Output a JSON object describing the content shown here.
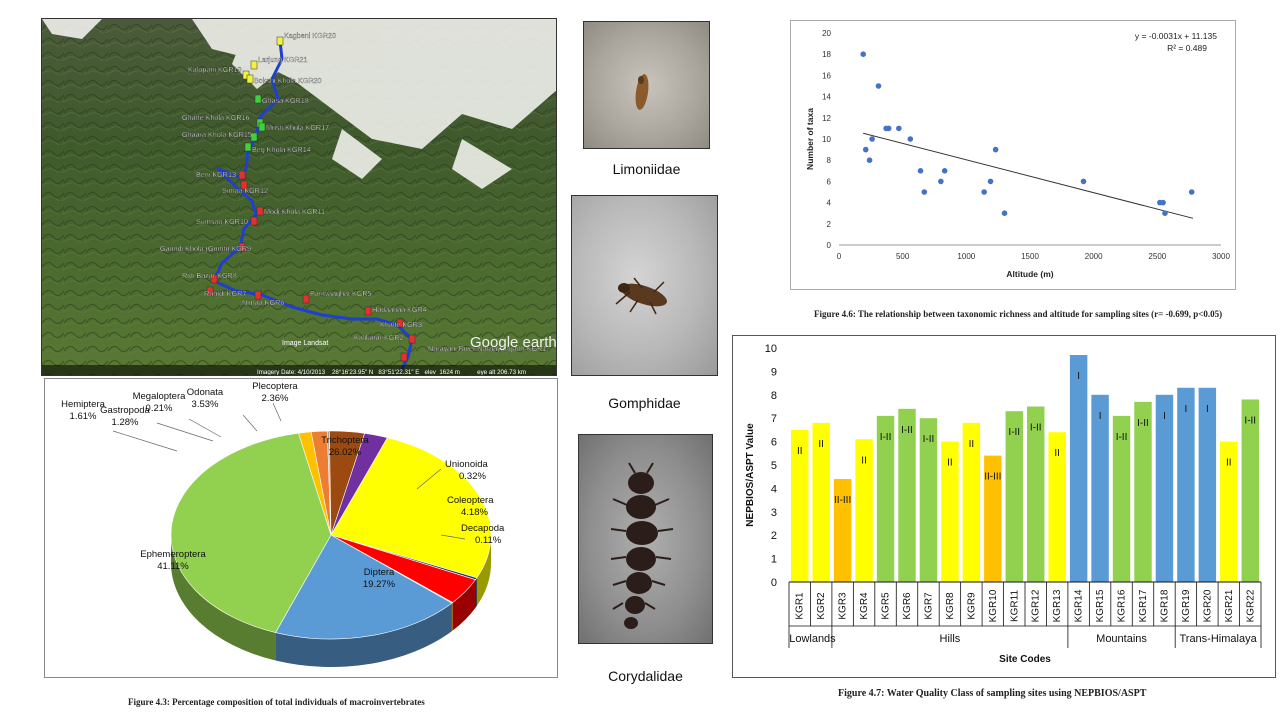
{
  "map": {
    "sites": [
      {
        "code": "KGR20",
        "name": "Kagbeni",
        "color": "yellow"
      },
      {
        "code": "KGR21",
        "name": "Larjung",
        "color": "yellow"
      },
      {
        "code": "KGR19",
        "name": "Kalopani",
        "color": "yellow"
      },
      {
        "code": "KGR20",
        "name": "Bokshi Khola",
        "color": "yellow"
      },
      {
        "code": "KGR18",
        "name": "Ghasa",
        "color": "green"
      },
      {
        "code": "KGR16",
        "name": "Ghatte Khola",
        "color": "green"
      },
      {
        "code": "KGR17",
        "name": "Mristi Khola",
        "color": "green"
      },
      {
        "code": "KGR15",
        "name": "Ghaara Khola",
        "color": "green"
      },
      {
        "code": "KGR14",
        "name": "Beg Khola",
        "color": "green"
      },
      {
        "code": "KGR13",
        "name": "Beni",
        "color": "red"
      },
      {
        "code": "KGR12",
        "name": "Simaa",
        "color": "red"
      },
      {
        "code": "KGR11",
        "name": "Modi Khola",
        "color": "red"
      },
      {
        "code": "KGR10",
        "name": "Sumsaa",
        "color": "red"
      },
      {
        "code": "KGR9",
        "name": "Gaundi Khola (Gumti)",
        "color": "red"
      },
      {
        "code": "KGR8",
        "name": "Ridi Bazar",
        "color": "red"
      },
      {
        "code": "KGR7",
        "name": "Ramdi",
        "color": "red"
      },
      {
        "code": "KGR6",
        "name": "Nimaa",
        "color": "red"
      },
      {
        "code": "KGR5",
        "name": "Pariwaaghat",
        "color": "red"
      },
      {
        "code": "KGR4",
        "name": "Hadaahaa",
        "color": "red"
      },
      {
        "code": "KGR3",
        "name": "Khalte",
        "color": "red"
      },
      {
        "code": "KGR2",
        "name": "Kalikatar",
        "color": "red"
      },
      {
        "code": "KGR1",
        "name": "Narayani River Naraayangadh",
        "color": "red"
      }
    ],
    "logo": "Google earth",
    "image_credit": "Image Landsat",
    "status_bar": "Imagery Date: 4/10/2013    28°16'23.95\" N   83°51'22.31\" E   elev  1624 m          eye alt 206.73 km"
  },
  "photos": [
    {
      "label": "Limoniidae"
    },
    {
      "label": "Gomphidae"
    },
    {
      "label": "Corydalidae"
    }
  ],
  "chart_data": [
    {
      "type": "pie",
      "caption": "Figure 4.3: Percentage composition of total individuals of macroinvertebrates",
      "slices": [
        {
          "name": "Trichoptera",
          "value": 26.02,
          "label": "26.02%",
          "color": "#ffff00"
        },
        {
          "name": "Unionoida",
          "value": 0.32,
          "label": "0.32%",
          "color": "#1f3864"
        },
        {
          "name": "Coleoptera",
          "value": 4.18,
          "label": "4.18%",
          "color": "#ff0000"
        },
        {
          "name": "Decapoda",
          "value": 0.11,
          "label": "0.11%",
          "color": "#ffc000"
        },
        {
          "name": "Diptera",
          "value": 19.27,
          "label": "19.27%",
          "color": "#5b9bd5"
        },
        {
          "name": "Ephemeroptera",
          "value": 41.11,
          "label": "41.11%",
          "color": "#92d050"
        },
        {
          "name": "Gastropoda",
          "value": 1.28,
          "label": "1.28%",
          "color": "#ffc000"
        },
        {
          "name": "Hemiptera",
          "value": 1.61,
          "label": "1.61%",
          "color": "#ed7d31"
        },
        {
          "name": "Megaloptera",
          "value": 0.21,
          "label": "0.21%",
          "color": "#a5a5a5"
        },
        {
          "name": "Odonata",
          "value": 3.53,
          "label": "3.53%",
          "color": "#9c4a0f"
        },
        {
          "name": "Plecoptera",
          "value": 2.36,
          "label": "2.36%",
          "color": "#7030a0"
        }
      ]
    },
    {
      "type": "scatter",
      "caption": "Figure 4.6: The relationship between taxonomic richness and altitude for sampling sites (r= -0.699, p<0.05)",
      "xlabel": "Altitude (m)",
      "ylabel": "Number of taxa",
      "xlim": [
        0,
        3000
      ],
      "ylim": [
        0,
        20
      ],
      "xticks": [
        0,
        500,
        1000,
        1500,
        2000,
        2500,
        3000
      ],
      "yticks": [
        0,
        2,
        4,
        6,
        8,
        10,
        12,
        14,
        16,
        18,
        20
      ],
      "equation": "y = -0.0031x + 11.135",
      "r2": "R² = 0.489",
      "trendline": {
        "slope": -0.0031,
        "intercept": 11.135,
        "x_range": [
          190,
          2780
        ]
      },
      "points": [
        {
          "x": 190,
          "y": 18
        },
        {
          "x": 210,
          "y": 9
        },
        {
          "x": 240,
          "y": 8
        },
        {
          "x": 260,
          "y": 10
        },
        {
          "x": 310,
          "y": 15
        },
        {
          "x": 370,
          "y": 11
        },
        {
          "x": 390,
          "y": 11
        },
        {
          "x": 470,
          "y": 11
        },
        {
          "x": 560,
          "y": 10
        },
        {
          "x": 640,
          "y": 7
        },
        {
          "x": 670,
          "y": 5
        },
        {
          "x": 800,
          "y": 6
        },
        {
          "x": 830,
          "y": 7
        },
        {
          "x": 1140,
          "y": 5
        },
        {
          "x": 1190,
          "y": 6
        },
        {
          "x": 1230,
          "y": 9
        },
        {
          "x": 1300,
          "y": 3
        },
        {
          "x": 1920,
          "y": 6
        },
        {
          "x": 2520,
          "y": 4
        },
        {
          "x": 2545,
          "y": 4
        },
        {
          "x": 2560,
          "y": 3
        },
        {
          "x": 2770,
          "y": 5
        }
      ]
    },
    {
      "type": "bar",
      "caption": "Figure 4.7: Water Quality Class of sampling sites using NEPBIOS/ASPT",
      "xlabel": "Site Codes",
      "ylabel": "NEPBIOS/ASPT Value",
      "ylim": [
        0,
        10
      ],
      "yticks": [
        0,
        1,
        2,
        3,
        4,
        5,
        6,
        7,
        8,
        9,
        10
      ],
      "categories": [
        "KGR1",
        "KGR2",
        "KGR3",
        "KGR4",
        "KGR5",
        "KGR6",
        "KGR7",
        "KGR8",
        "KGR9",
        "KGR10",
        "KGR11",
        "KGR12",
        "KGR13",
        "KGR14",
        "KGR15",
        "KGR16",
        "KGR17",
        "KGR18",
        "KGR19",
        "KGR20",
        "KGR21",
        "KGR22"
      ],
      "values": [
        6.5,
        6.8,
        4.4,
        6.1,
        7.1,
        7.4,
        7.0,
        6.0,
        6.8,
        5.4,
        7.3,
        7.5,
        6.4,
        9.7,
        8.0,
        7.1,
        7.7,
        8.0,
        8.3,
        8.3,
        6.0,
        7.8
      ],
      "classes": [
        "II",
        "II",
        "II-III",
        "II",
        "I-II",
        "I-II",
        "I-II",
        "II",
        "II",
        "II-III",
        "I-II",
        "I-II",
        "II",
        "I",
        "I",
        "I-II",
        "I-II",
        "I",
        "I",
        "I",
        "II",
        "I-II"
      ],
      "class_colors": {
        "I": "#5b9bd5",
        "I-II": "#92d050",
        "II": "#ffff00",
        "II-III": "#ffc000"
      },
      "groups": [
        {
          "name": "Lowlands",
          "from": 0,
          "to": 1
        },
        {
          "name": "Hills",
          "from": 2,
          "to": 12
        },
        {
          "name": "Mountains",
          "from": 13,
          "to": 17
        },
        {
          "name": "Trans-Himalaya",
          "from": 18,
          "to": 21
        }
      ]
    }
  ]
}
